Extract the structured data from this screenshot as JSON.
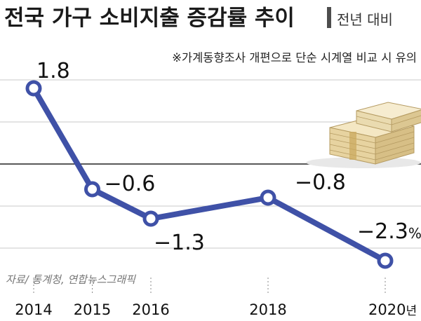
{
  "header": {
    "title": "전국 가구 소비지출 증감률 추이",
    "subtitle": "전년 대비",
    "note": "※가계동향조사 개편으로 단순 시계열 비교 시 유의"
  },
  "source": "자료/ 통계청, 연합뉴스그래픽",
  "chart_data": {
    "type": "line",
    "x": [
      "2014",
      "2015",
      "2016",
      "2018",
      "2020"
    ],
    "x_tick_labels": [
      "2014",
      "2015",
      "2016",
      "2018",
      "2020년"
    ],
    "values": [
      1.8,
      -0.6,
      -1.3,
      -0.8,
      -2.3
    ],
    "data_labels": [
      "1.8",
      "−0.6",
      "−1.3",
      "−0.8",
      "−2.3%"
    ],
    "title": "전국 가구 소비지출 증감률 추이",
    "subtitle": "전년 대비",
    "ylim": [
      -2.9,
      2.1
    ],
    "grid": true,
    "zero_line": true,
    "colors": {
      "line": "#3f51a7",
      "marker_fill": "#ffffff",
      "grid": "#c9c9c9",
      "zero_line": "#222222",
      "title_bar": "#4d4d4d"
    }
  }
}
